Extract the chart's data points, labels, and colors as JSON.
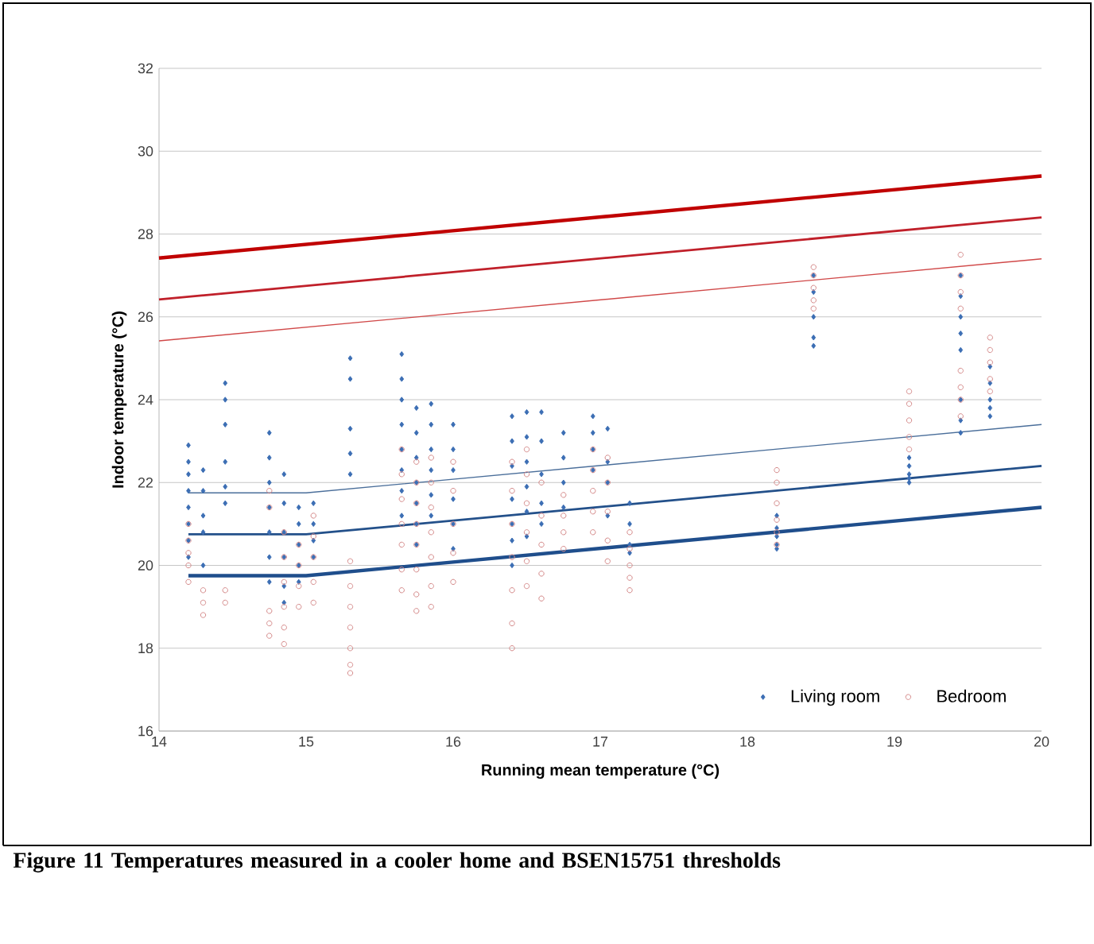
{
  "chart_data": {
    "type": "scatter",
    "title": "Figure 11 Temperatures measured in a cooler home and BSEN15751 thresholds",
    "xlabel": "Running mean temperature (°C)",
    "ylabel": "Indoor temperature (°C)",
    "xlim": [
      14,
      20
    ],
    "xticks": [
      14,
      15,
      16,
      17,
      18,
      19,
      20
    ],
    "ylim": [
      16,
      32
    ],
    "yticks": [
      16,
      18,
      20,
      22,
      24,
      26,
      28,
      30,
      32
    ],
    "grid": "y",
    "legend": "bottom right",
    "series": [
      {
        "name": "Living room",
        "color": "#3c6eb4",
        "marker": "diamond",
        "x": [
          14.2,
          14.2,
          14.2,
          14.2,
          14.2,
          14.2,
          14.2,
          14.2,
          14.3,
          14.3,
          14.3,
          14.3,
          14.3,
          14.45,
          14.45,
          14.45,
          14.45,
          14.45,
          14.45,
          14.75,
          14.75,
          14.75,
          14.75,
          14.75,
          14.75,
          14.75,
          14.85,
          14.85,
          14.85,
          14.85,
          14.85,
          14.85,
          14.95,
          14.95,
          14.95,
          14.95,
          14.95,
          15.05,
          15.05,
          15.05,
          15.05,
          15.3,
          15.3,
          15.3,
          15.3,
          15.3,
          15.65,
          15.65,
          15.65,
          15.65,
          15.65,
          15.65,
          15.65,
          15.65,
          15.75,
          15.75,
          15.75,
          15.75,
          15.75,
          15.75,
          15.75,
          15.85,
          15.85,
          15.85,
          15.85,
          15.85,
          15.85,
          16.0,
          16.0,
          16.0,
          16.0,
          16.0,
          16.0,
          16.4,
          16.4,
          16.4,
          16.4,
          16.4,
          16.4,
          16.4,
          16.5,
          16.5,
          16.5,
          16.5,
          16.5,
          16.5,
          16.6,
          16.6,
          16.6,
          16.6,
          16.6,
          16.75,
          16.75,
          16.75,
          16.75,
          16.95,
          16.95,
          16.95,
          16.95,
          17.05,
          17.05,
          17.05,
          17.05,
          17.2,
          17.2,
          17.2,
          17.2,
          18.2,
          18.2,
          18.2,
          18.2,
          18.2,
          18.45,
          18.45,
          18.45,
          18.45,
          18.45,
          19.1,
          19.1,
          19.1,
          19.1,
          19.1,
          19.45,
          19.45,
          19.45,
          19.45,
          19.45,
          19.45,
          19.45,
          19.45,
          19.65,
          19.65,
          19.65,
          19.65,
          19.65
        ],
        "values": [
          22.9,
          22.5,
          22.2,
          21.8,
          21.4,
          21.0,
          20.6,
          20.2,
          22.3,
          21.8,
          21.2,
          20.8,
          20.0,
          24.4,
          24.0,
          23.4,
          22.5,
          21.9,
          21.5,
          23.2,
          22.6,
          22.0,
          21.4,
          20.8,
          20.2,
          19.6,
          22.2,
          21.5,
          20.8,
          20.2,
          19.5,
          19.1,
          21.4,
          21.0,
          20.5,
          20.0,
          19.6,
          21.5,
          21.0,
          20.6,
          20.2,
          25.0,
          24.5,
          23.3,
          22.7,
          22.2,
          25.1,
          24.5,
          24.0,
          23.4,
          22.8,
          22.3,
          21.8,
          21.2,
          23.8,
          23.2,
          22.6,
          22.0,
          21.5,
          21.0,
          20.5,
          23.9,
          23.4,
          22.8,
          22.3,
          21.7,
          21.2,
          23.4,
          22.8,
          22.3,
          21.6,
          21.0,
          20.4,
          23.6,
          23.0,
          22.4,
          21.6,
          21.0,
          20.6,
          20.0,
          23.7,
          23.1,
          22.5,
          21.9,
          21.3,
          20.7,
          23.7,
          23.0,
          22.2,
          21.5,
          21.0,
          23.2,
          22.6,
          22.0,
          21.4,
          23.6,
          23.2,
          22.8,
          22.3,
          23.3,
          22.5,
          22.0,
          21.2,
          21.5,
          21.0,
          20.5,
          20.3,
          21.2,
          20.9,
          20.7,
          20.5,
          20.4,
          27.0,
          26.6,
          26.0,
          25.5,
          25.3,
          22.6,
          22.4,
          22.2,
          22.1,
          22.0,
          27.0,
          26.5,
          26.0,
          25.6,
          25.2,
          24.0,
          23.5,
          23.2,
          24.8,
          24.4,
          24.0,
          23.8,
          23.6
        ]
      },
      {
        "name": "Bedroom",
        "color": "#d48a8a",
        "marker": "circle",
        "x": [
          14.2,
          14.2,
          14.2,
          14.2,
          14.2,
          14.3,
          14.3,
          14.3,
          14.45,
          14.45,
          14.75,
          14.75,
          14.75,
          14.75,
          14.75,
          14.85,
          14.85,
          14.85,
          14.85,
          14.85,
          14.85,
          14.95,
          14.95,
          14.95,
          14.95,
          15.05,
          15.05,
          15.05,
          15.05,
          15.05,
          15.3,
          15.3,
          15.3,
          15.3,
          15.3,
          15.3,
          15.3,
          15.65,
          15.65,
          15.65,
          15.65,
          15.65,
          15.65,
          15.65,
          15.75,
          15.75,
          15.75,
          15.75,
          15.75,
          15.75,
          15.75,
          15.75,
          15.85,
          15.85,
          15.85,
          15.85,
          15.85,
          15.85,
          15.85,
          16.0,
          16.0,
          16.0,
          16.0,
          16.0,
          16.4,
          16.4,
          16.4,
          16.4,
          16.4,
          16.4,
          16.4,
          16.5,
          16.5,
          16.5,
          16.5,
          16.5,
          16.5,
          16.6,
          16.6,
          16.6,
          16.6,
          16.6,
          16.75,
          16.75,
          16.75,
          16.75,
          16.95,
          16.95,
          16.95,
          16.95,
          16.95,
          17.05,
          17.05,
          17.05,
          17.05,
          17.05,
          17.2,
          17.2,
          17.2,
          17.2,
          17.2,
          18.2,
          18.2,
          18.2,
          18.2,
          18.2,
          18.2,
          18.45,
          18.45,
          18.45,
          18.45,
          18.45,
          19.1,
          19.1,
          19.1,
          19.1,
          19.1,
          19.45,
          19.45,
          19.45,
          19.45,
          19.45,
          19.45,
          19.45,
          19.45,
          19.65,
          19.65,
          19.65,
          19.65,
          19.65
        ],
        "values": [
          21.0,
          20.6,
          20.3,
          20.0,
          19.6,
          19.4,
          19.1,
          18.8,
          19.4,
          19.1,
          21.8,
          21.4,
          18.9,
          18.6,
          18.3,
          20.8,
          20.2,
          19.6,
          19.0,
          18.5,
          18.1,
          20.5,
          20.0,
          19.5,
          19.0,
          21.2,
          20.7,
          20.2,
          19.6,
          19.1,
          20.1,
          19.5,
          19.0,
          18.5,
          18.0,
          17.6,
          17.4,
          22.8,
          22.2,
          21.6,
          21.0,
          20.5,
          19.9,
          19.4,
          22.5,
          22.0,
          21.5,
          21.0,
          20.5,
          19.9,
          19.3,
          18.9,
          22.6,
          22.0,
          21.4,
          20.8,
          20.2,
          19.5,
          19.0,
          22.5,
          21.8,
          21.0,
          20.3,
          19.6,
          22.5,
          21.8,
          21.0,
          20.2,
          19.4,
          18.6,
          18.0,
          22.8,
          22.2,
          21.5,
          20.8,
          20.1,
          19.5,
          22.0,
          21.2,
          20.5,
          19.8,
          19.2,
          21.7,
          21.2,
          20.8,
          20.4,
          22.8,
          22.3,
          21.8,
          21.3,
          20.8,
          22.6,
          22.0,
          21.3,
          20.6,
          20.1,
          20.8,
          20.4,
          20.0,
          19.7,
          19.4,
          22.3,
          22.0,
          21.5,
          21.1,
          20.8,
          20.5,
          27.2,
          27.0,
          26.7,
          26.4,
          26.2,
          24.2,
          23.9,
          23.5,
          23.1,
          22.8,
          27.5,
          27.0,
          26.6,
          26.2,
          24.7,
          24.3,
          24.0,
          23.6,
          25.5,
          25.2,
          24.9,
          24.5,
          24.2
        ]
      },
      {
        "type": "line",
        "color": "#c00000",
        "marker": "none",
        "x": [
          14,
          20
        ],
        "values": [
          27.42,
          29.4
        ]
      },
      {
        "type": "line",
        "color": "#c0202a",
        "marker": "none",
        "x": [
          14,
          20
        ],
        "values": [
          26.42,
          28.4
        ]
      },
      {
        "type": "line",
        "color": "#d04848",
        "marker": "none",
        "x": [
          14,
          20
        ],
        "values": [
          25.42,
          27.4
        ]
      },
      {
        "type": "line",
        "color": "#1f4e8c",
        "marker": "none",
        "x": [
          14.2,
          15,
          20
        ],
        "values": [
          19.75,
          19.75,
          21.4
        ]
      },
      {
        "type": "line",
        "color": "#23508a",
        "marker": "none",
        "x": [
          14.2,
          15,
          20
        ],
        "values": [
          20.75,
          20.75,
          22.4
        ]
      },
      {
        "type": "line",
        "color": "#4a6e9a",
        "marker": "none",
        "x": [
          14.2,
          15,
          20
        ],
        "values": [
          21.75,
          21.75,
          23.4
        ]
      }
    ]
  }
}
